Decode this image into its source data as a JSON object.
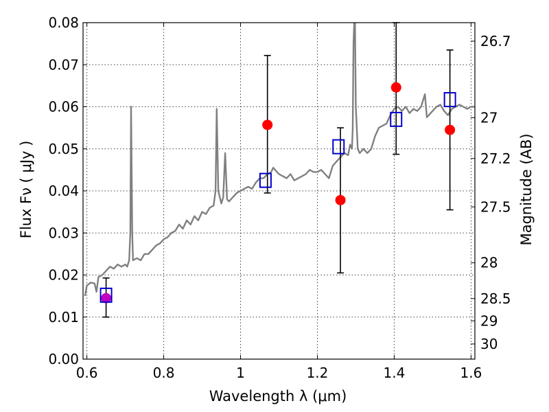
{
  "chart_data": {
    "type": "scatter",
    "xlabel": "Wavelength  λ (μm)",
    "ylabel": "Flux  Fν  ( μJy )",
    "y2label": "Magnitude (AB)",
    "xlim": [
      0.59,
      1.61
    ],
    "ylim": [
      0.0,
      0.08
    ],
    "grid": true,
    "x_ticks": [
      0.6,
      0.8,
      1.0,
      1.2,
      1.4,
      1.6
    ],
    "x_tick_labels": [
      "0.6",
      "0.8",
      "1",
      "1.2",
      "1.4",
      "1.6"
    ],
    "y_ticks": [
      0.0,
      0.01,
      0.02,
      0.03,
      0.04,
      0.05,
      0.06,
      0.07,
      0.08
    ],
    "y_tick_labels": [
      "0.00",
      "0.01",
      "0.02",
      "0.03",
      "0.04",
      "0.05",
      "0.06",
      "0.07",
      "0.08"
    ],
    "y2_ticks": [
      {
        "label": "26.7",
        "flux": 0.0756
      },
      {
        "label": "27",
        "flux": 0.0574
      },
      {
        "label": "27.2",
        "flux": 0.0477
      },
      {
        "label": "27.5",
        "flux": 0.0362
      },
      {
        "label": "28",
        "flux": 0.0229
      },
      {
        "label": "28.5",
        "flux": 0.0144
      },
      {
        "label": "29",
        "flux": 0.0091
      },
      {
        "label": "30",
        "flux": 0.0036
      }
    ],
    "series": [
      {
        "kind": "line",
        "color": "#808080",
        "points": [
          [
            0.595,
            0.015
          ],
          [
            0.6,
            0.0175
          ],
          [
            0.61,
            0.0182
          ],
          [
            0.62,
            0.018
          ],
          [
            0.625,
            0.016
          ],
          [
            0.63,
            0.0195
          ],
          [
            0.64,
            0.02
          ],
          [
            0.65,
            0.021
          ],
          [
            0.66,
            0.022
          ],
          [
            0.67,
            0.0215
          ],
          [
            0.68,
            0.0225
          ],
          [
            0.69,
            0.022
          ],
          [
            0.7,
            0.0225
          ],
          [
            0.705,
            0.022
          ],
          [
            0.71,
            0.0235
          ],
          [
            0.713,
            0.03
          ],
          [
            0.715,
            0.06
          ],
          [
            0.718,
            0.03
          ],
          [
            0.72,
            0.0235
          ],
          [
            0.73,
            0.024
          ],
          [
            0.74,
            0.0235
          ],
          [
            0.75,
            0.025
          ],
          [
            0.76,
            0.025
          ],
          [
            0.77,
            0.026
          ],
          [
            0.78,
            0.027
          ],
          [
            0.79,
            0.0275
          ],
          [
            0.8,
            0.0285
          ],
          [
            0.81,
            0.029
          ],
          [
            0.82,
            0.03
          ],
          [
            0.83,
            0.0305
          ],
          [
            0.84,
            0.032
          ],
          [
            0.85,
            0.031
          ],
          [
            0.86,
            0.033
          ],
          [
            0.87,
            0.032
          ],
          [
            0.88,
            0.034
          ],
          [
            0.89,
            0.033
          ],
          [
            0.9,
            0.035
          ],
          [
            0.91,
            0.0345
          ],
          [
            0.92,
            0.036
          ],
          [
            0.93,
            0.0365
          ],
          [
            0.935,
            0.04
          ],
          [
            0.938,
            0.0595
          ],
          [
            0.942,
            0.04
          ],
          [
            0.95,
            0.037
          ],
          [
            0.955,
            0.0385
          ],
          [
            0.96,
            0.049
          ],
          [
            0.965,
            0.038
          ],
          [
            0.97,
            0.0375
          ],
          [
            0.98,
            0.0385
          ],
          [
            0.99,
            0.0395
          ],
          [
            1.0,
            0.04
          ],
          [
            1.01,
            0.0405
          ],
          [
            1.02,
            0.041
          ],
          [
            1.03,
            0.0405
          ],
          [
            1.04,
            0.042
          ],
          [
            1.05,
            0.043
          ],
          [
            1.06,
            0.043
          ],
          [
            1.07,
            0.044
          ],
          [
            1.08,
            0.0445
          ],
          [
            1.085,
            0.0455
          ],
          [
            1.09,
            0.045
          ],
          [
            1.1,
            0.044
          ],
          [
            1.11,
            0.0435
          ],
          [
            1.12,
            0.043
          ],
          [
            1.13,
            0.044
          ],
          [
            1.14,
            0.0425
          ],
          [
            1.15,
            0.043
          ],
          [
            1.16,
            0.0435
          ],
          [
            1.17,
            0.044
          ],
          [
            1.18,
            0.045
          ],
          [
            1.19,
            0.0445
          ],
          [
            1.2,
            0.0445
          ],
          [
            1.21,
            0.045
          ],
          [
            1.22,
            0.044
          ],
          [
            1.23,
            0.043
          ],
          [
            1.24,
            0.046
          ],
          [
            1.25,
            0.047
          ],
          [
            1.26,
            0.048
          ],
          [
            1.27,
            0.049
          ],
          [
            1.28,
            0.0485
          ],
          [
            1.285,
            0.051
          ],
          [
            1.29,
            0.05
          ],
          [
            1.292,
            0.055
          ],
          [
            1.294,
            0.075
          ],
          [
            1.296,
            0.08
          ],
          [
            1.298,
            0.08
          ],
          [
            1.3,
            0.06
          ],
          [
            1.305,
            0.05
          ],
          [
            1.31,
            0.049
          ],
          [
            1.32,
            0.05
          ],
          [
            1.33,
            0.049
          ],
          [
            1.34,
            0.05
          ],
          [
            1.35,
            0.053
          ],
          [
            1.36,
            0.055
          ],
          [
            1.37,
            0.0555
          ],
          [
            1.38,
            0.056
          ],
          [
            1.39,
            0.058
          ],
          [
            1.4,
            0.0595
          ],
          [
            1.41,
            0.06
          ],
          [
            1.42,
            0.059
          ],
          [
            1.43,
            0.06
          ],
          [
            1.44,
            0.0585
          ],
          [
            1.45,
            0.0595
          ],
          [
            1.46,
            0.059
          ],
          [
            1.47,
            0.06
          ],
          [
            1.48,
            0.063
          ],
          [
            1.485,
            0.0575
          ],
          [
            1.49,
            0.058
          ],
          [
            1.5,
            0.059
          ],
          [
            1.51,
            0.06
          ],
          [
            1.52,
            0.0605
          ],
          [
            1.53,
            0.059
          ],
          [
            1.54,
            0.058
          ],
          [
            1.55,
            0.0595
          ],
          [
            1.56,
            0.06
          ],
          [
            1.57,
            0.0605
          ],
          [
            1.58,
            0.06
          ],
          [
            1.59,
            0.0595
          ],
          [
            1.6,
            0.06
          ],
          [
            1.61,
            0.06
          ]
        ]
      },
      {
        "kind": "points",
        "marker": "circle",
        "color": "#ff0000",
        "points": [
          {
            "x": 1.07,
            "y": 0.0557,
            "lo": 0.0395,
            "hi": 0.0722
          },
          {
            "x": 1.26,
            "y": 0.0378,
            "lo": 0.0205,
            "hi": 0.055
          },
          {
            "x": 1.405,
            "y": 0.0646,
            "lo": 0.0487,
            "hi": 0.0805
          },
          {
            "x": 1.545,
            "y": 0.0545,
            "lo": 0.0355,
            "hi": 0.0735
          }
        ]
      },
      {
        "kind": "points",
        "marker": "circle",
        "color": "#bf00bf",
        "points": [
          {
            "x": 0.65,
            "y": 0.0145,
            "lo": 0.01,
            "hi": 0.0193
          }
        ]
      },
      {
        "kind": "points",
        "marker": "square",
        "color": "#0000cc",
        "points": [
          {
            "x": 0.65,
            "y": 0.0152
          },
          {
            "x": 1.065,
            "y": 0.0425
          },
          {
            "x": 1.255,
            "y": 0.0505
          },
          {
            "x": 1.405,
            "y": 0.057
          },
          {
            "x": 1.545,
            "y": 0.0617
          }
        ]
      }
    ]
  }
}
